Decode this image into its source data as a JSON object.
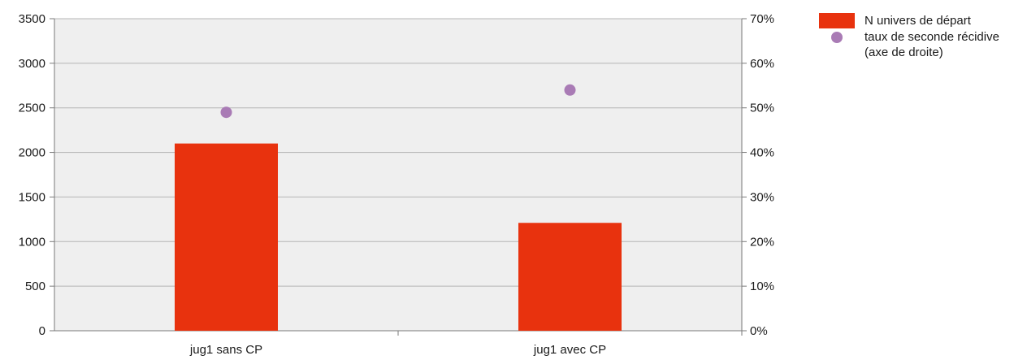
{
  "colors": {
    "bar": "#e8320e",
    "point": "#a97bb5",
    "plot_bg": "#efefef",
    "grid": "#b5b5b5",
    "axis": "#7a7a7a"
  },
  "chart_data": {
    "type": "bar",
    "title": "",
    "categories": [
      "jug1 sans CP",
      "jug1 avec CP"
    ],
    "series": [
      {
        "name": "N univers de départ",
        "kind": "bar",
        "axis": "left",
        "values": [
          2100,
          1210
        ]
      },
      {
        "name": "taux de seconde récidive\n(axe de droite)",
        "kind": "scatter",
        "axis": "right",
        "values": [
          0.49,
          0.54
        ]
      }
    ],
    "y_left": {
      "min": 0,
      "max": 3500,
      "ticks": [
        0,
        500,
        1000,
        1500,
        2000,
        2500,
        3000,
        3500
      ],
      "tick_labels": [
        "0",
        "500",
        "1000",
        "1500",
        "2000",
        "2500",
        "3000",
        "3500"
      ]
    },
    "y_right": {
      "min": 0,
      "max": 0.7,
      "ticks": [
        0,
        0.1,
        0.2,
        0.3,
        0.4,
        0.5,
        0.6,
        0.7
      ],
      "tick_labels": [
        "0%",
        "10%",
        "20%",
        "30%",
        "40%",
        "50%",
        "60%",
        "70%"
      ]
    },
    "grid": true,
    "legend_position": "top-right"
  }
}
